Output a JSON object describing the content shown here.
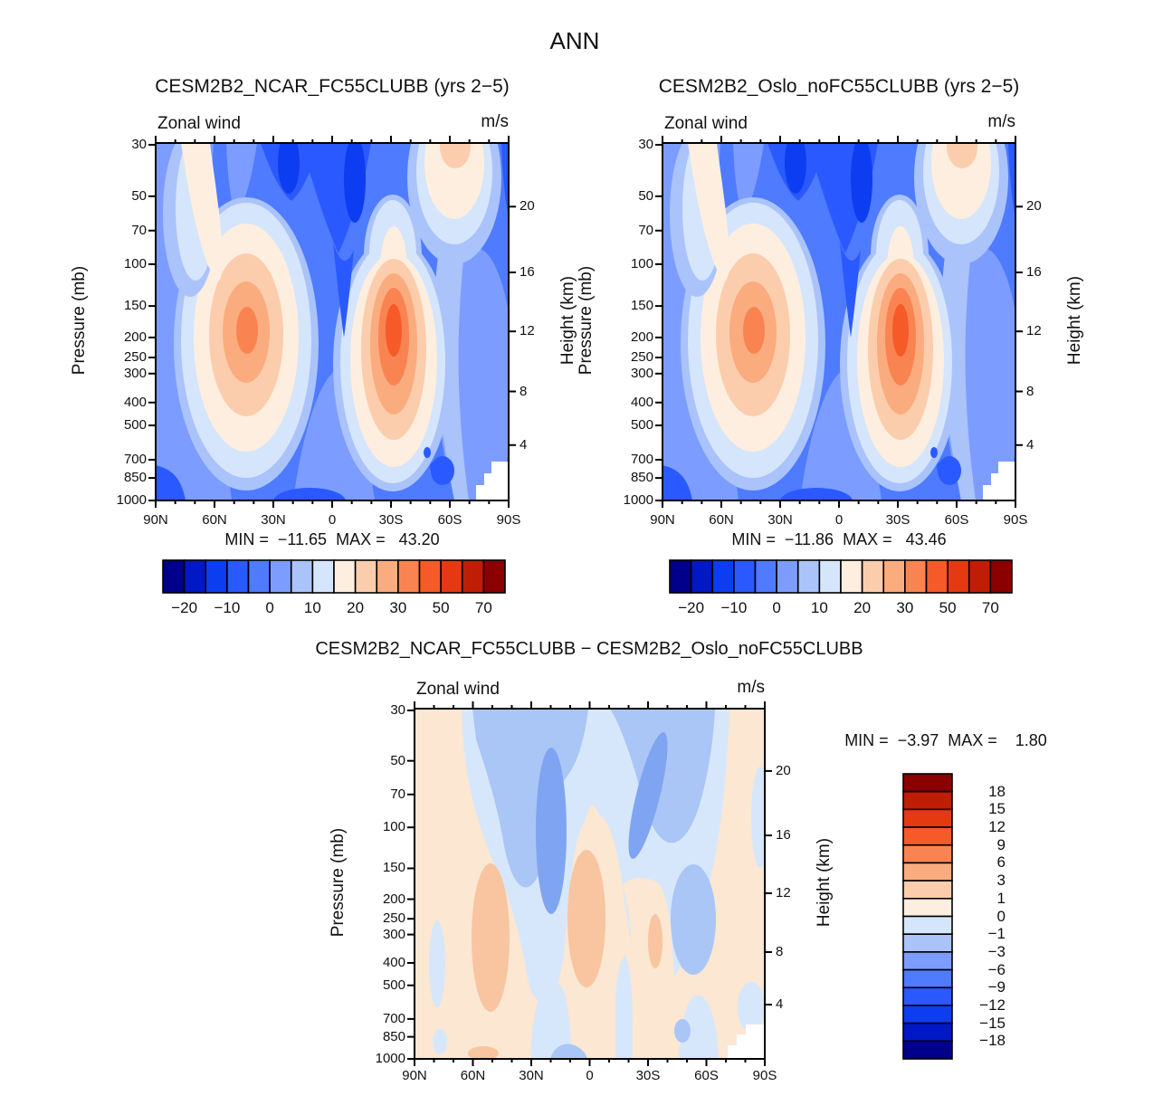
{
  "header": {
    "title": "ANN"
  },
  "panels": [
    {
      "title": "CESM2B2_NCAR_FC55CLUBB (yrs 2−5)",
      "field_label": "Zonal wind",
      "units": "m/s",
      "stats": "MIN =  −11.65  MAX =   43.20"
    },
    {
      "title": "CESM2B2_Oslo_noFC55CLUBB (yrs 2−5)",
      "field_label": "Zonal wind",
      "units": "m/s",
      "stats": "MIN =  −11.86  MAX =   43.46"
    },
    {
      "title": "CESM2B2_NCAR_FC55CLUBB − CESM2B2_Oslo_noFC55CLUBB",
      "field_label": "Zonal wind",
      "units": "m/s",
      "stats": "MIN =  −3.97  MAX =    1.80"
    }
  ],
  "axes": {
    "pressure_label": "Pressure (mb)",
    "height_label": "Height (km)",
    "pressure_ticks": [
      [
        "30",
        0.005
      ],
      [
        "50",
        0.149
      ],
      [
        "70",
        0.245
      ],
      [
        "100",
        0.339
      ],
      [
        "150",
        0.456
      ],
      [
        "200",
        0.544
      ],
      [
        "250",
        0.6
      ],
      [
        "300",
        0.645
      ],
      [
        "400",
        0.726
      ],
      [
        "500",
        0.79
      ],
      [
        "700",
        0.886
      ],
      [
        "850",
        0.937
      ],
      [
        "1000",
        1.0
      ]
    ],
    "height_ticks": [
      [
        "20",
        0.178
      ],
      [
        "16",
        0.362
      ],
      [
        "12",
        0.527
      ],
      [
        "8",
        0.695
      ],
      [
        "4",
        0.845
      ]
    ],
    "lat_ticks": [
      "90N",
      "60N",
      "30N",
      "0",
      "30S",
      "60S",
      "90S"
    ]
  },
  "colorbar": {
    "labels": [
      "−20",
      "−10",
      "0",
      "10",
      "20",
      "30",
      "50",
      "70"
    ],
    "palette": [
      "#00008B",
      "#0018C6",
      "#0D3DF0",
      "#2A59FF",
      "#4E7BFF",
      "#7C9DFF",
      "#AAC3FA",
      "#D5E5FC",
      "#FDEEDF",
      "#FCCDAC",
      "#FBAC7F",
      "#FA8451",
      "#F65A28",
      "#E53911",
      "#C01D05",
      "#8B0000"
    ]
  },
  "diff_colorbar": {
    "labels": [
      "18",
      "15",
      "12",
      "9",
      "6",
      "3",
      "1",
      "0",
      "−1",
      "−3",
      "−6",
      "−9",
      "−12",
      "−15",
      "−18"
    ],
    "palette": [
      "#8B0000",
      "#C01D05",
      "#E53911",
      "#F65A28",
      "#FA8451",
      "#FBAC7F",
      "#FCCDAC",
      "#FDEEDF",
      "#D5E5FC",
      "#AAC3FA",
      "#7C9DFF",
      "#4E7BFF",
      "#2A59FF",
      "#0D3DF0",
      "#0018C6",
      "#00008B"
    ]
  },
  "chart_data": [
    {
      "type": "contour",
      "title": "CESM2B2_NCAR_FC55CLUBB (yrs 2−5)",
      "variable": "Zonal wind",
      "units": "m/s",
      "x_ticks": [
        "90N",
        "60N",
        "30N",
        "0",
        "30S",
        "60S",
        "90S"
      ],
      "y_left_label": "Pressure (mb)",
      "y_left_ticks": [
        30,
        50,
        70,
        100,
        150,
        200,
        250,
        300,
        400,
        500,
        700,
        850,
        1000
      ],
      "y_right_label": "Height (km)",
      "y_right_ticks": [
        20,
        16,
        12,
        8,
        4
      ],
      "min": -11.65,
      "max": 43.2,
      "contour_levels": [
        -20,
        -15,
        -10,
        -5,
        0,
        5,
        10,
        15,
        20,
        25,
        30,
        40,
        50,
        60,
        70
      ],
      "colorbar_labels": [
        -20,
        -10,
        0,
        10,
        20,
        30,
        50,
        70
      ],
      "features": "Westerly jet maxima near 45N and 30S at ~200 mb (warm colors, SH jet stronger ~43 m/s); easterlies (blue) in tropics and deep stratospheric easterly column near equator; surface easterlies; terrain gap near South Pole"
    },
    {
      "type": "contour",
      "title": "CESM2B2_Oslo_noFC55CLUBB (yrs 2−5)",
      "variable": "Zonal wind",
      "units": "m/s",
      "x_ticks": [
        "90N",
        "60N",
        "30N",
        "0",
        "30S",
        "60S",
        "90S"
      ],
      "y_left_label": "Pressure (mb)",
      "y_left_ticks": [
        30,
        50,
        70,
        100,
        150,
        200,
        250,
        300,
        400,
        500,
        700,
        850,
        1000
      ],
      "y_right_label": "Height (km)",
      "y_right_ticks": [
        20,
        16,
        12,
        8,
        4
      ],
      "min": -11.86,
      "max": 43.46,
      "contour_levels": [
        -20,
        -15,
        -10,
        -5,
        0,
        5,
        10,
        15,
        20,
        25,
        30,
        40,
        50,
        60,
        70
      ],
      "colorbar_labels": [
        -20,
        -10,
        0,
        10,
        20,
        30,
        50,
        70
      ],
      "features": "Same structure as NCAR panel; SH jet max 43.46 m/s"
    },
    {
      "type": "contour",
      "title": "CESM2B2_NCAR_FC55CLUBB − CESM2B2_Oslo_noFC55CLUBB",
      "variable": "Zonal wind difference",
      "units": "m/s",
      "x_ticks": [
        "90N",
        "60N",
        "30N",
        "0",
        "30S",
        "60S",
        "90S"
      ],
      "y_left_label": "Pressure (mb)",
      "y_left_ticks": [
        30,
        50,
        70,
        100,
        150,
        200,
        250,
        300,
        400,
        500,
        700,
        850,
        1000
      ],
      "y_right_label": "Height (km)",
      "y_right_ticks": [
        20,
        16,
        12,
        8,
        4
      ],
      "min": -3.97,
      "max": 1.8,
      "contour_levels": [
        -18,
        -15,
        -12,
        -9,
        -6,
        -3,
        -1,
        0,
        1,
        3,
        6,
        9,
        12,
        15,
        18
      ],
      "colorbar_labels": [
        18,
        15,
        12,
        9,
        6,
        3,
        1,
        0,
        -1,
        -3,
        -6,
        -9,
        -12,
        -15,
        -18
      ],
      "features": "Mostly weak differences: 0 to +1 m/s (pale peach) background, negative differences (−1 to −6 m/s, blues) in upper troposphere/stratosphere near 30N–30S, small +1 to +3 m/s patches near 50N, equator and 25S mid-troposphere"
    }
  ]
}
